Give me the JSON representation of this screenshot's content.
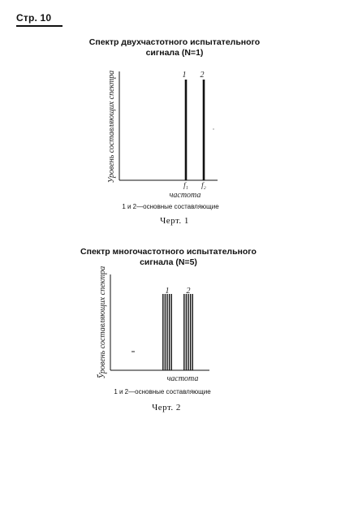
{
  "page": {
    "header": "Стр. 10"
  },
  "figures": [
    {
      "title_line1": "Спектр двухчастотного испытательного",
      "title_line2": "сигнала (N=1)",
      "caption": "1 и 2—основные составляющие",
      "figure_label": "Черт. 1"
    },
    {
      "title_line1": "Спектр многочастотного испытательного",
      "title_line2": "сигнала (N=5)",
      "caption": "1 и 2—основные составляющие",
      "figure_label": "Черт. 2"
    }
  ],
  "chart_data": [
    {
      "type": "bar",
      "ylabel": "Уровень составляющих спектра",
      "xlabel": "частота",
      "x_tick_labels": [
        "f₁",
        "f₂"
      ],
      "series": [
        {
          "name": "1",
          "values": [
            1
          ]
        },
        {
          "name": "2",
          "values": [
            1
          ]
        }
      ],
      "lines_per_group": 1,
      "grid": false
    },
    {
      "type": "bar",
      "ylabel": "Уровень составляющих спектра",
      "xlabel": "частота",
      "x_tick_labels": [],
      "series": [
        {
          "name": "1",
          "values": [
            1,
            1,
            1,
            1,
            1
          ]
        },
        {
          "name": "2",
          "values": [
            1,
            1,
            1,
            1,
            1
          ]
        }
      ],
      "lines_per_group": 5,
      "grid": false
    }
  ]
}
